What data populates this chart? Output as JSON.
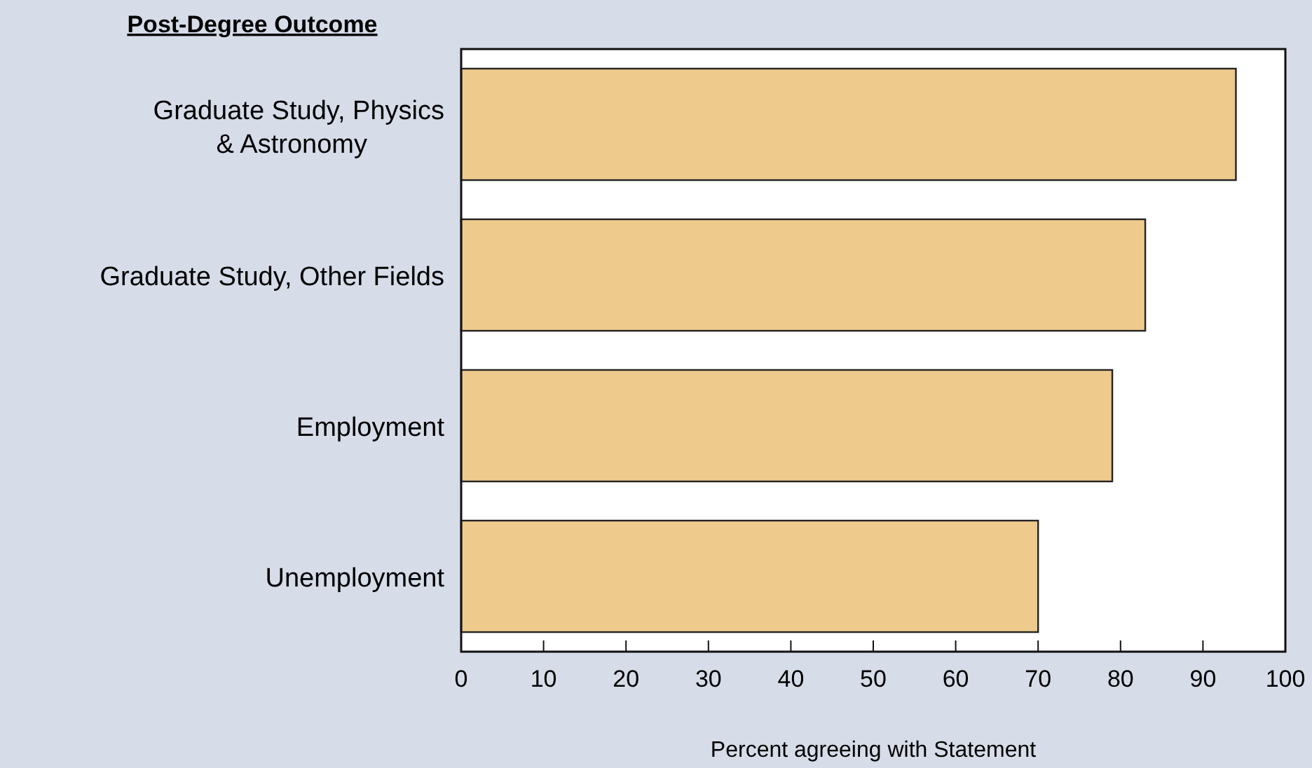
{
  "chart_data": {
    "type": "bar",
    "orientation": "horizontal",
    "ylabel": "Post-Degree Outcome",
    "xlabel": "Percent agreeing with Statement",
    "categories": [
      "Graduate Study, Physics\n& Astronomy",
      "Graduate Study, Other Fields",
      "Employment",
      "Unemployment"
    ],
    "values": [
      94,
      83,
      79,
      70
    ],
    "color": "#eeca8c",
    "xlim": [
      0,
      100
    ],
    "xticks": [
      0,
      10,
      20,
      30,
      40,
      50,
      60,
      70,
      80,
      90,
      100
    ]
  }
}
